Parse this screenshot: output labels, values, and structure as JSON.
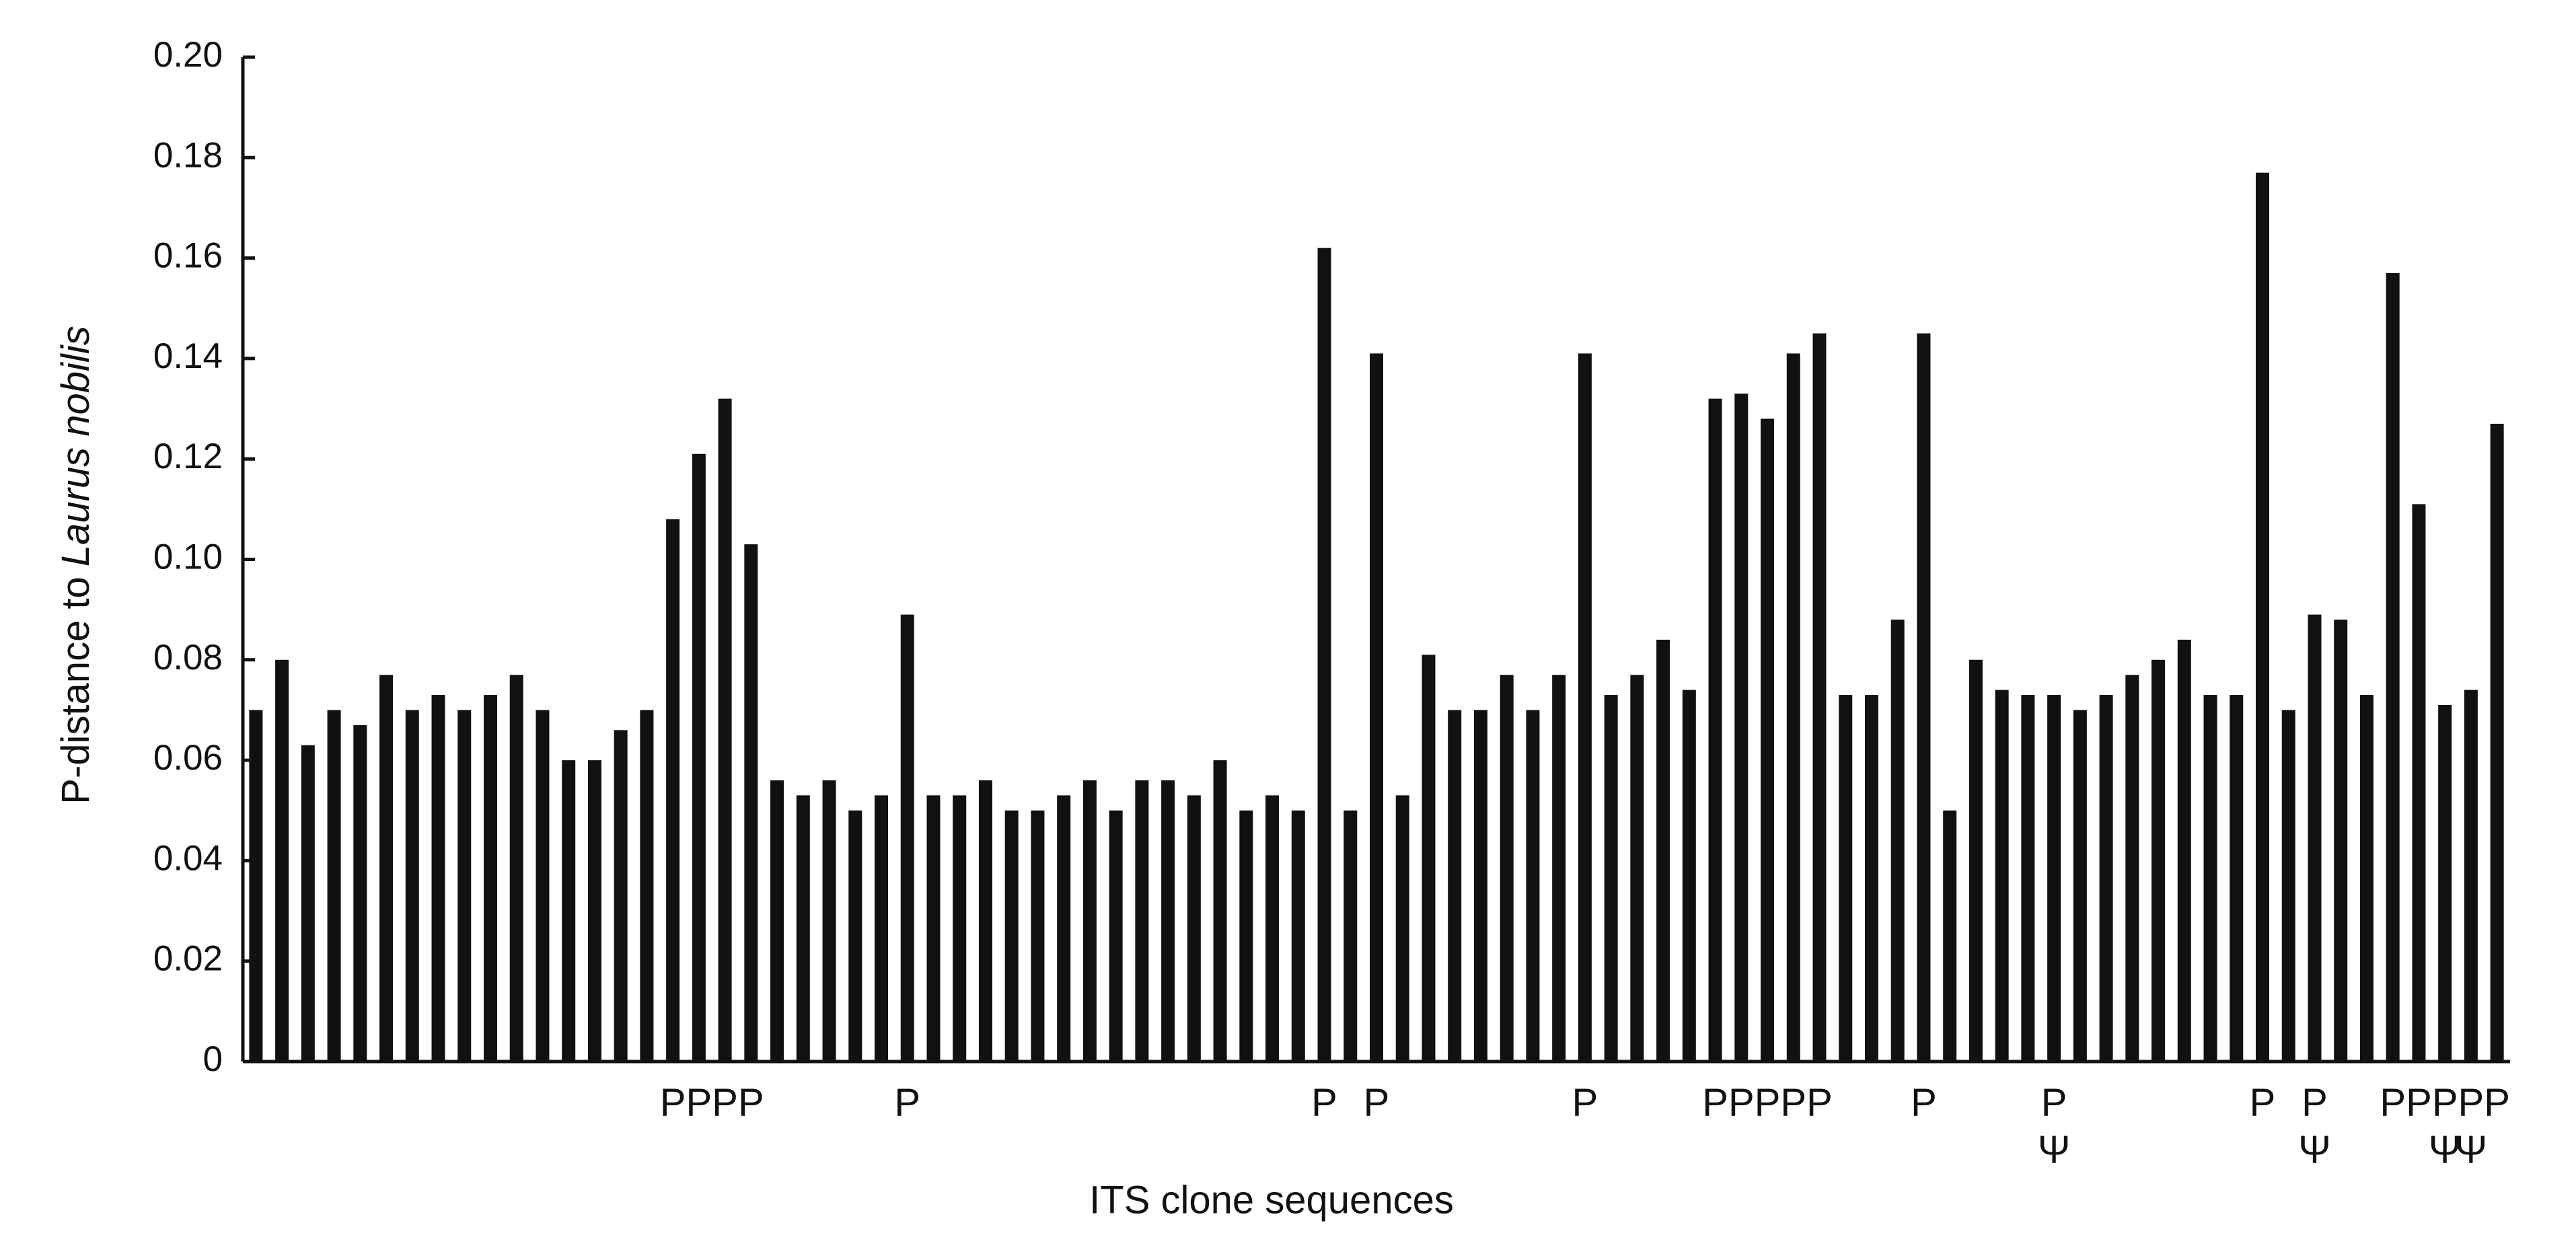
{
  "chart_data": {
    "type": "bar",
    "xlabel": "ITS clone sequences",
    "ylabel": {
      "text": "P-distance to",
      "italic": "Laurus nobilis"
    },
    "values": [
      0.07,
      0.08,
      0.063,
      0.07,
      0.067,
      0.077,
      0.07,
      0.073,
      0.07,
      0.073,
      0.077,
      0.07,
      0.06,
      0.06,
      0.066,
      0.07,
      0.108,
      0.121,
      0.132,
      0.103,
      0.056,
      0.053,
      0.056,
      0.05,
      0.053,
      0.089,
      0.053,
      0.053,
      0.056,
      0.05,
      0.05,
      0.053,
      0.056,
      0.05,
      0.056,
      0.056,
      0.053,
      0.06,
      0.05,
      0.053,
      0.05,
      0.162,
      0.05,
      0.141,
      0.053,
      0.081,
      0.07,
      0.07,
      0.077,
      0.07,
      0.077,
      0.141,
      0.073,
      0.077,
      0.084,
      0.074,
      0.132,
      0.133,
      0.128,
      0.141,
      0.145,
      0.073,
      0.073,
      0.088,
      0.145,
      0.05,
      0.08,
      0.074,
      0.073,
      0.073,
      0.07,
      0.073,
      0.077,
      0.08,
      0.084,
      0.073,
      0.073,
      0.177,
      0.07,
      0.089,
      0.088,
      0.073,
      0.157,
      0.111,
      0.071,
      0.074,
      0.127
    ],
    "categories": [
      null,
      null,
      null,
      null,
      null,
      null,
      null,
      null,
      null,
      null,
      null,
      null,
      null,
      null,
      null,
      null,
      "P",
      "P",
      "P",
      "P",
      null,
      null,
      null,
      null,
      null,
      "P",
      null,
      null,
      null,
      null,
      null,
      null,
      null,
      null,
      null,
      null,
      null,
      null,
      null,
      null,
      null,
      "P",
      null,
      "P",
      null,
      null,
      null,
      null,
      null,
      null,
      null,
      "P",
      null,
      null,
      null,
      null,
      "P",
      "P",
      "P",
      "P",
      "P",
      null,
      null,
      null,
      "P",
      null,
      null,
      null,
      null,
      "P",
      null,
      null,
      null,
      null,
      null,
      null,
      null,
      "P",
      null,
      "P",
      null,
      null,
      "P",
      "P",
      "P",
      "P",
      "P"
    ],
    "symbols": [
      null,
      null,
      null,
      null,
      null,
      null,
      null,
      null,
      null,
      null,
      null,
      null,
      null,
      null,
      null,
      null,
      null,
      null,
      null,
      null,
      null,
      null,
      null,
      null,
      null,
      null,
      null,
      null,
      null,
      null,
      null,
      null,
      null,
      null,
      null,
      null,
      null,
      null,
      null,
      null,
      null,
      null,
      null,
      null,
      null,
      null,
      null,
      null,
      null,
      null,
      null,
      null,
      null,
      null,
      null,
      null,
      null,
      null,
      null,
      null,
      null,
      null,
      null,
      null,
      null,
      null,
      null,
      null,
      null,
      "Ψ",
      null,
      null,
      null,
      null,
      null,
      null,
      null,
      null,
      null,
      "Ψ",
      null,
      null,
      null,
      null,
      "Ψ",
      "Ψ",
      null
    ],
    "color": "#111111",
    "ylim": [
      0,
      0.2
    ],
    "yticks": [
      0,
      0.02,
      0.04,
      0.06,
      0.08,
      {
        "value": 0.1,
        "label": "0.10"
      },
      0.12,
      0.14,
      0.16,
      0.18,
      {
        "value": 0.2,
        "label": "0.20"
      }
    ]
  }
}
